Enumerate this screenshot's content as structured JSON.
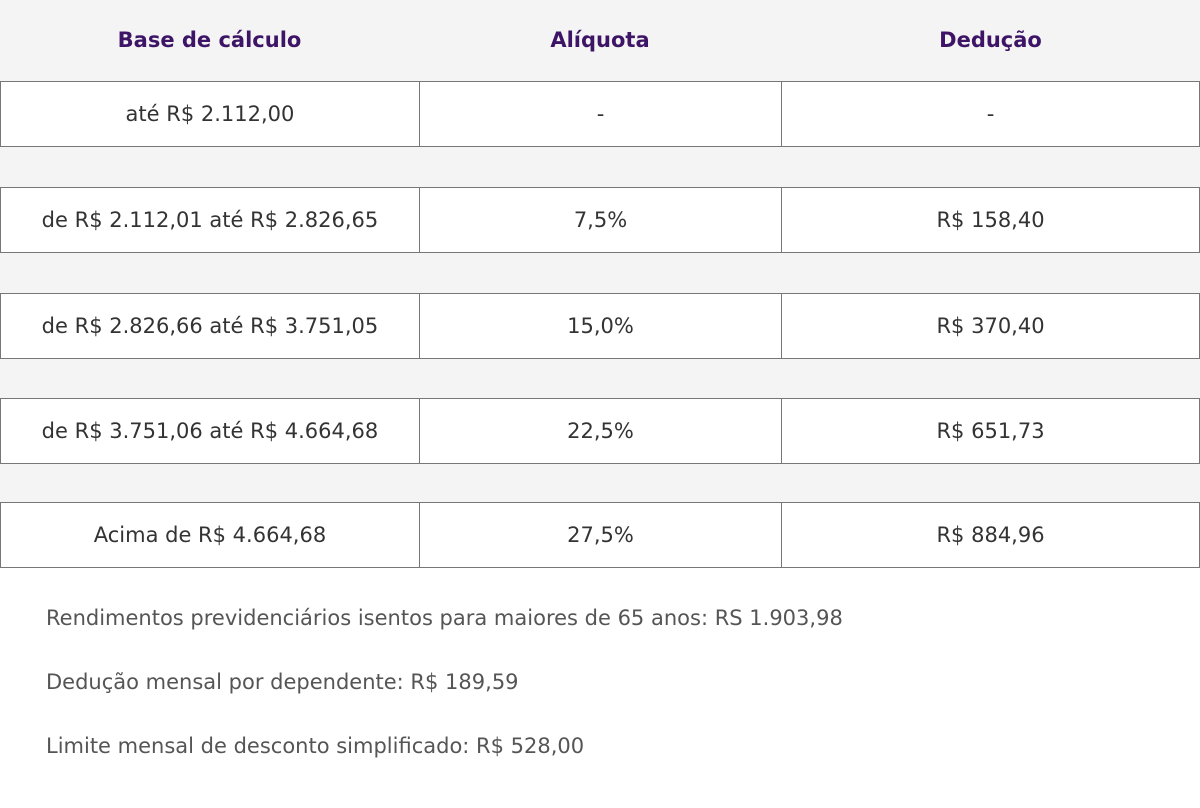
{
  "table": {
    "columns": [
      "Base de cálculo",
      "Alíquota",
      "Dedução"
    ],
    "rows": [
      [
        "até R$ 2.112,00",
        "-",
        "-"
      ],
      [
        "de R$ 2.112,01 até R$ 2.826,65",
        "7,5%",
        "R$ 158,40"
      ],
      [
        "de R$ 2.826,66 até R$ 3.751,05",
        "15,0%",
        "R$ 370,40"
      ],
      [
        "de R$ 3.751,06 até R$ 4.664,68",
        "22,5%",
        "R$ 651,73"
      ],
      [
        "Acima de R$ 4.664,68",
        "27,5%",
        "R$ 884,96"
      ]
    ]
  },
  "notes": [
    "Rendimentos previdenciários isentos para maiores de 65 anos: RS 1.903,98",
    "Dedução mensal por dependente: R$ 189,59",
    "Limite mensal de desconto simplificado: R$ 528,00"
  ]
}
